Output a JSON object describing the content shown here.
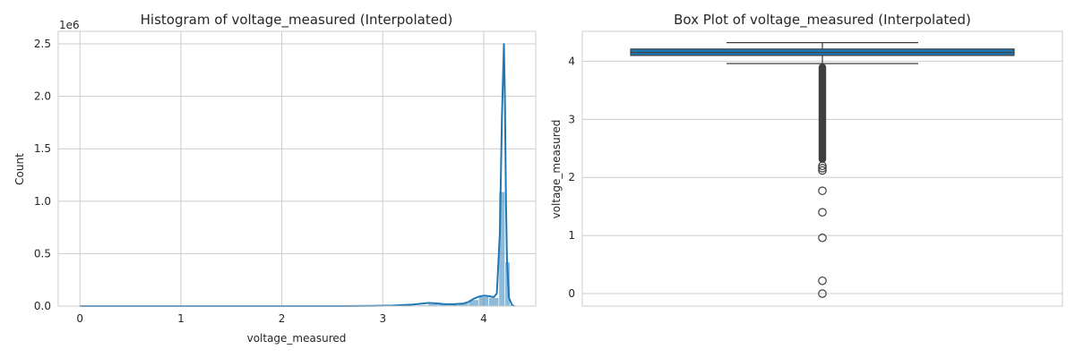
{
  "chart_data": [
    {
      "type": "histogram",
      "title": "Histogram of voltage_measured (Interpolated)",
      "xlabel": "voltage_measured",
      "ylabel": "Count",
      "y_offset_label": "1e6",
      "xlim": [
        -0.215,
        4.515
      ],
      "ylim": [
        0,
        2.62
      ],
      "xticks": [
        0,
        1,
        2,
        3,
        4
      ],
      "yticks": [
        0.0,
        0.5,
        1.0,
        1.5,
        2.0,
        2.5
      ],
      "ytick_labels": [
        "0.0",
        "0.5",
        "1.0",
        "1.5",
        "2.0",
        "2.5"
      ],
      "grid": true,
      "color": "#1f77b4",
      "bars": [
        {
          "x0": 3.35,
          "x1": 3.45,
          "value": 0.01
        },
        {
          "x0": 3.45,
          "x1": 3.55,
          "value": 0.02
        },
        {
          "x0": 3.55,
          "x1": 3.65,
          "value": 0.02
        },
        {
          "x0": 3.65,
          "x1": 3.75,
          "value": 0.02
        },
        {
          "x0": 3.75,
          "x1": 3.85,
          "value": 0.03
        },
        {
          "x0": 3.85,
          "x1": 3.95,
          "value": 0.06
        },
        {
          "x0": 3.95,
          "x1": 4.05,
          "value": 0.09
        },
        {
          "x0": 4.05,
          "x1": 4.15,
          "value": 0.08
        },
        {
          "x0": 4.15,
          "x1": 4.21,
          "value": 1.09
        },
        {
          "x0": 4.21,
          "x1": 4.26,
          "value": 0.42
        },
        {
          "x0": 4.26,
          "x1": 4.32,
          "value": 0.01
        }
      ],
      "kde": {
        "x": [
          0.0,
          2.5,
          2.9,
          3.1,
          3.3,
          3.4,
          3.45,
          3.5,
          3.55,
          3.6,
          3.7,
          3.8,
          3.85,
          3.9,
          3.95,
          4.0,
          4.05,
          4.1,
          4.13,
          4.16,
          4.18,
          4.2,
          4.21,
          4.22,
          4.23,
          4.25,
          4.28,
          4.3
        ],
        "y": [
          0.0,
          0.0,
          0.002,
          0.005,
          0.015,
          0.025,
          0.03,
          0.028,
          0.025,
          0.02,
          0.018,
          0.025,
          0.04,
          0.07,
          0.09,
          0.1,
          0.095,
          0.085,
          0.12,
          0.7,
          1.8,
          2.5,
          2.0,
          1.0,
          0.45,
          0.08,
          0.01,
          0.0
        ]
      }
    },
    {
      "type": "box",
      "title": "Box Plot of voltage_measured (Interpolated)",
      "xlabel": "",
      "ylabel": "voltage_measured",
      "ylim": [
        -0.215,
        4.515
      ],
      "yticks": [
        0,
        1,
        2,
        3,
        4
      ],
      "grid": true,
      "color": "#1f77b4",
      "q1": 4.1,
      "median": 4.15,
      "q3": 4.21,
      "whisker_low": 3.96,
      "whisker_high": 4.32,
      "outliers_dense_range": [
        2.25,
        3.96
      ],
      "outliers": [
        2.12,
        2.16,
        2.2,
        1.77,
        1.4,
        0.96,
        0.22,
        0.0
      ]
    }
  ]
}
